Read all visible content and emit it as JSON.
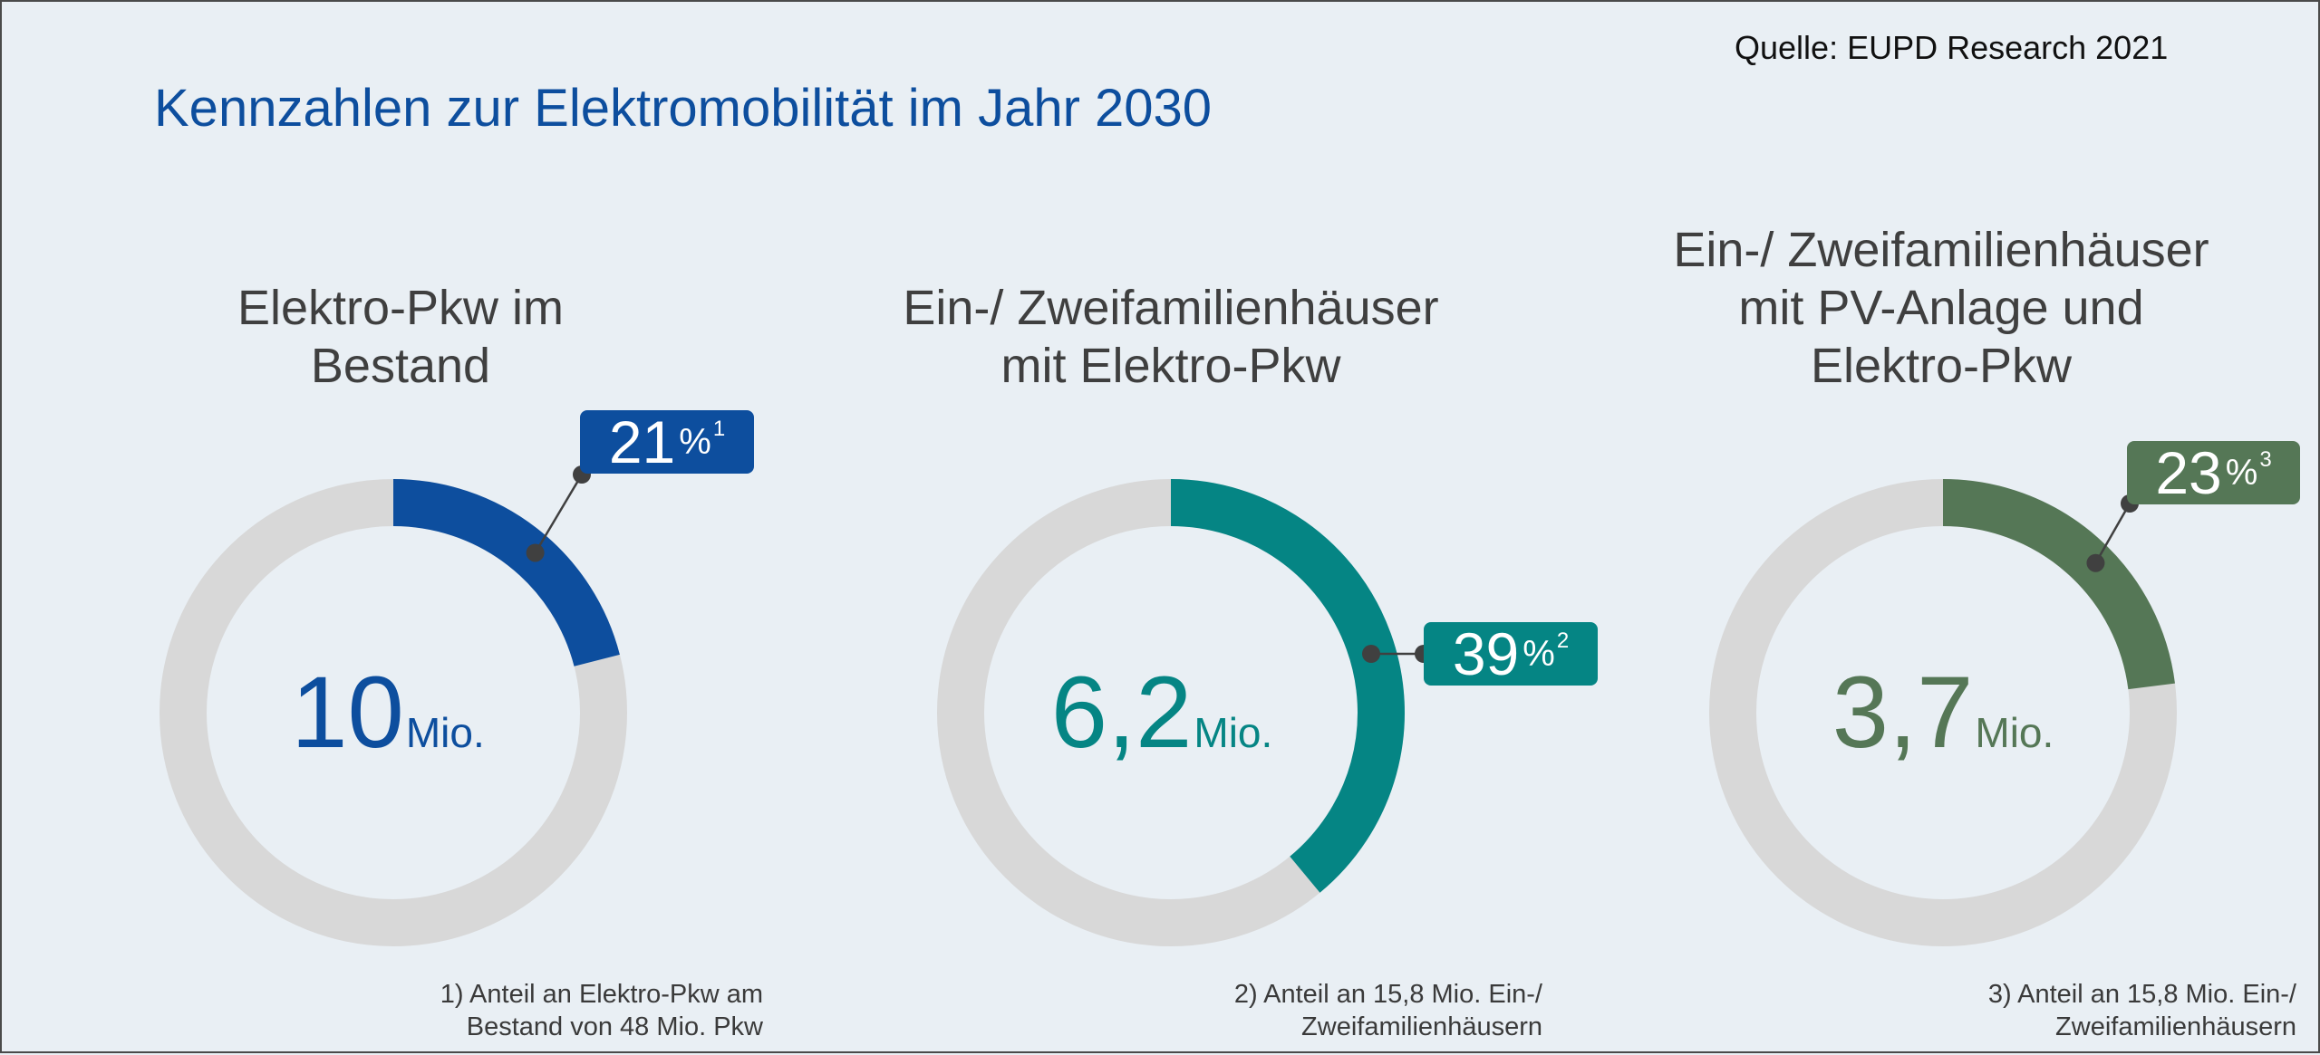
{
  "source": "Quelle: EUPD Research 2021",
  "title": "Kennzahlen zur Elektromobilität im Jahr 2030",
  "colors": {
    "background": "#e9eff4",
    "track": "#d8d8d8",
    "connector": "#404040"
  },
  "chart_data": [
    {
      "type": "pie",
      "variant": "donut",
      "title": "Elektro-Pkw im Bestand",
      "title_lines": [
        "Elektro-Pkw im",
        "Bestand"
      ],
      "center_value": "10",
      "center_unit": "Mio.",
      "percent": 21,
      "percent_label": "21",
      "percent_sign": "%",
      "footnote_ref": "1",
      "color": "#0d4e9e",
      "footnote_lines": [
        "1) Anteil an Elektro-Pkw am",
        "Bestand von 48 Mio. Pkw"
      ]
    },
    {
      "type": "pie",
      "variant": "donut",
      "title": "Ein-/ Zweifamilienhäuser mit Elektro-Pkw",
      "title_lines": [
        "Ein-/ Zweifamilienhäuser",
        "mit Elektro-Pkw"
      ],
      "center_value": "6,2",
      "center_unit": "Mio.",
      "percent": 39,
      "percent_label": "39",
      "percent_sign": "%",
      "footnote_ref": "2",
      "color": "#058584",
      "footnote_lines": [
        "2) Anteil an 15,8 Mio. Ein-/",
        "Zweifamilienhäusern"
      ]
    },
    {
      "type": "pie",
      "variant": "donut",
      "title": "Ein-/ Zweifamilienhäuser mit PV-Anlage und Elektro-Pkw",
      "title_lines": [
        "Ein-/ Zweifamilienhäuser",
        "mit PV-Anlage und",
        "Elektro-Pkw"
      ],
      "center_value": "3,7",
      "center_unit": "Mio.",
      "percent": 23,
      "percent_label": "23",
      "percent_sign": "%",
      "footnote_ref": "3",
      "color": "#557756",
      "footnote_lines": [
        "3) Anteil an 15,8 Mio. Ein-/",
        "Zweifamilienhäusern"
      ]
    }
  ]
}
